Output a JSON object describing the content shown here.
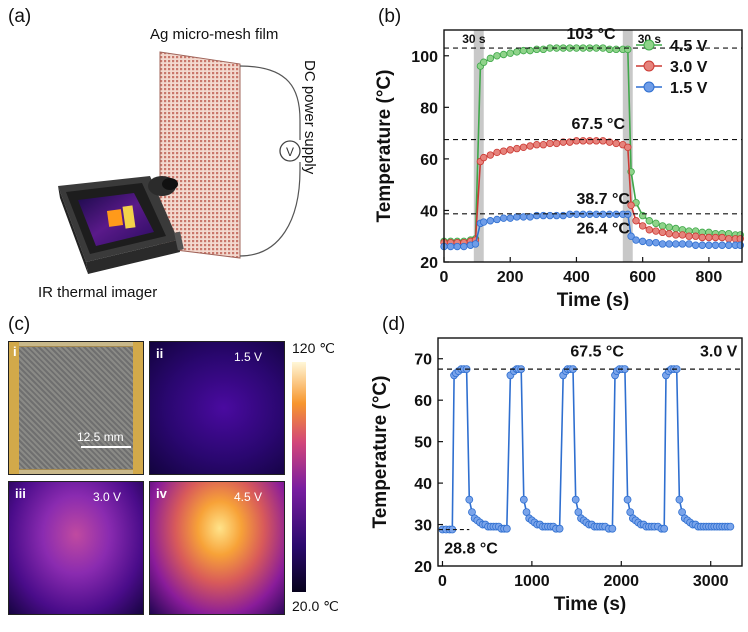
{
  "panel_labels": {
    "a": "(a)",
    "b": "(b)",
    "c": "(c)",
    "d": "(d)"
  },
  "panel_a": {
    "film_label": "Ag micro-mesh film",
    "supply_label": "DC power supply",
    "meter_symbol": "V",
    "camera_label": "IR thermal imager"
  },
  "panel_c": {
    "photo_tag": "i",
    "scale_text": "12.5 mm",
    "images": [
      {
        "tag": "ii",
        "voltage": "1.5 V"
      },
      {
        "tag": "iii",
        "voltage": "3.0 V"
      },
      {
        "tag": "iv",
        "voltage": "4.5 V"
      }
    ],
    "colorbar_max": "120 ℃",
    "colorbar_min": "20.0 ℃"
  },
  "chart_data": [
    {
      "id": "b",
      "type": "line",
      "xlabel": "Time (s)",
      "ylabel": "Temperature (°C)",
      "xlim": [
        0,
        900
      ],
      "ylim": [
        20,
        110
      ],
      "xticks": [
        0,
        200,
        400,
        600,
        800
      ],
      "yticks": [
        20,
        40,
        60,
        80,
        100
      ],
      "legend": "top-right",
      "series": [
        {
          "name": "4.5 V",
          "color": "#3fa84a",
          "fill": "#8fd38a",
          "x": [
            0,
            20,
            40,
            60,
            80,
            95,
            110,
            120,
            140,
            160,
            180,
            200,
            220,
            240,
            260,
            280,
            300,
            320,
            340,
            360,
            380,
            400,
            420,
            440,
            460,
            480,
            500,
            520,
            540,
            555,
            565,
            580,
            600,
            620,
            640,
            660,
            680,
            700,
            720,
            740,
            760,
            780,
            800,
            820,
            840,
            860,
            880,
            895
          ],
          "y": [
            28,
            28,
            28,
            28,
            28.5,
            29,
            96,
            97.5,
            99,
            100,
            100.5,
            101,
            101.5,
            102,
            102,
            102.5,
            102.5,
            103,
            103,
            103,
            103,
            103,
            103,
            103,
            103,
            103,
            102.5,
            102.5,
            102.5,
            102.5,
            55,
            43,
            38,
            36,
            35,
            34,
            33.5,
            33,
            32.5,
            32,
            32,
            31.5,
            31.5,
            31,
            31,
            31,
            30.5,
            30.5
          ]
        },
        {
          "name": "3.0 V",
          "color": "#cc3a34",
          "fill": "#e6837c",
          "x": [
            0,
            20,
            40,
            60,
            80,
            95,
            110,
            120,
            140,
            160,
            180,
            200,
            220,
            240,
            260,
            280,
            300,
            320,
            340,
            360,
            380,
            400,
            420,
            440,
            460,
            480,
            500,
            520,
            540,
            555,
            565,
            580,
            600,
            620,
            640,
            660,
            680,
            700,
            720,
            740,
            760,
            780,
            800,
            820,
            840,
            860,
            880,
            895
          ],
          "y": [
            27.5,
            27.5,
            27.5,
            27.5,
            28,
            28.5,
            59,
            60.5,
            61.5,
            62.5,
            63,
            63.5,
            64,
            64.5,
            65,
            65.5,
            65.5,
            66,
            66,
            66.5,
            66.5,
            67,
            67,
            67,
            67,
            67,
            66.5,
            66,
            65.5,
            64.5,
            42,
            36,
            34,
            32.5,
            32,
            31.5,
            31,
            30.5,
            30.5,
            30,
            30,
            29.5,
            29.5,
            29.5,
            29.5,
            29,
            29,
            29
          ]
        },
        {
          "name": "1.5 V",
          "color": "#2f6fd0",
          "fill": "#6f9de8",
          "x": [
            0,
            20,
            40,
            60,
            80,
            95,
            110,
            120,
            140,
            160,
            180,
            200,
            220,
            240,
            260,
            280,
            300,
            320,
            340,
            360,
            380,
            400,
            420,
            440,
            460,
            480,
            500,
            520,
            540,
            555,
            565,
            580,
            600,
            620,
            640,
            660,
            680,
            700,
            720,
            740,
            760,
            780,
            800,
            820,
            840,
            860,
            880,
            895
          ],
          "y": [
            26,
            26,
            26,
            26,
            26.5,
            27,
            35,
            35.5,
            36,
            36.5,
            37,
            37,
            37.5,
            37.5,
            37.5,
            38,
            38,
            38,
            38,
            38,
            38.5,
            38.5,
            38.5,
            38.5,
            38.5,
            38.5,
            38.5,
            38.5,
            38.5,
            38.5,
            30,
            28.5,
            28,
            27.5,
            27.5,
            27,
            27,
            27,
            27,
            27,
            26.5,
            26.5,
            26.5,
            26.5,
            26.5,
            26.5,
            26.5,
            26.5
          ]
        }
      ],
      "reference_lines": [
        103,
        67.5,
        38.7
      ],
      "shaded_intervals": [
        [
          90,
          120
        ],
        [
          540,
          570
        ]
      ],
      "annotations": [
        {
          "text": "103 °C",
          "x": 370,
          "y": 106.5
        },
        {
          "text": "67.5 °C",
          "x": 385,
          "y": 71.5
        },
        {
          "text": "38.7 °C",
          "x": 400,
          "y": 42.5
        },
        {
          "text": "26.4 °C",
          "x": 400,
          "y": 31
        },
        {
          "text": "30 s",
          "x": 55,
          "y": 105
        },
        {
          "text": "30 s",
          "x": 585,
          "y": 105
        }
      ]
    },
    {
      "id": "d",
      "type": "line",
      "xlabel": "Time (s)",
      "ylabel": "Temperature (°C)",
      "xlim": [
        -50,
        3350
      ],
      "ylim": [
        20,
        75
      ],
      "xticks": [
        0,
        1000,
        2000,
        3000
      ],
      "yticks": [
        20,
        30,
        40,
        50,
        60,
        70
      ],
      "series": [
        {
          "name": "3.0 V",
          "color": "#2f6fd0",
          "fill": "#7aa4ea",
          "x": [
            0,
            40,
            80,
            110,
            130,
            150,
            180,
            210,
            240,
            270,
            300,
            330,
            360,
            390,
            420,
            450,
            480,
            510,
            540,
            570,
            600,
            630,
            660,
            690,
            720,
            760,
            800,
            830,
            850,
            880,
            910,
            940,
            970,
            1000,
            1030,
            1060,
            1090,
            1120,
            1150,
            1180,
            1210,
            1240,
            1270,
            1310,
            1350,
            1380,
            1400,
            1430,
            1460,
            1490,
            1520,
            1550,
            1580,
            1610,
            1640,
            1670,
            1700,
            1730,
            1760,
            1790,
            1820,
            1860,
            1900,
            1930,
            1950,
            1980,
            2010,
            2040,
            2070,
            2100,
            2130,
            2160,
            2190,
            2220,
            2250,
            2280,
            2310,
            2340,
            2370,
            2410,
            2450,
            2480,
            2500,
            2530,
            2560,
            2590,
            2620,
            2650,
            2680,
            2710,
            2740,
            2770,
            2800,
            2830,
            2860,
            2890,
            2920,
            2950,
            2980,
            3010,
            3040,
            3070,
            3100,
            3130,
            3160,
            3190,
            3220
          ],
          "y": [
            28.8,
            28.8,
            28.8,
            28.8,
            66,
            66.5,
            67,
            67.5,
            67.5,
            67.5,
            36,
            33,
            31.5,
            31,
            30.5,
            30,
            30,
            29.5,
            29.5,
            29.5,
            29.5,
            29.5,
            29,
            29,
            29,
            66,
            67,
            67.5,
            67.5,
            67.5,
            36,
            33,
            31.5,
            31,
            30.5,
            30,
            30,
            29.5,
            29.5,
            29.5,
            29.5,
            29.5,
            29,
            29,
            66,
            67,
            67.5,
            67.5,
            67.5,
            36,
            33,
            31.5,
            31,
            30.5,
            30,
            30,
            29.5,
            29.5,
            29.5,
            29.5,
            29.5,
            29,
            29,
            66,
            67,
            67.5,
            67.5,
            67.5,
            36,
            33,
            31.5,
            31,
            30.5,
            30,
            30,
            29.5,
            29.5,
            29.5,
            29.5,
            29.5,
            29,
            29,
            66,
            67,
            67.5,
            67.5,
            67.5,
            36,
            33,
            31.5,
            31,
            30.5,
            30,
            30,
            29.5,
            29.5,
            29.5,
            29.5,
            29.5,
            29.5,
            29.5,
            29.5,
            29.5,
            29.5,
            29.5,
            29.5,
            29.5
          ]
        }
      ],
      "reference_lines": [
        67.5
      ],
      "annotations": [
        {
          "text": "67.5 °C",
          "x": 1430,
          "y": 70.5
        },
        {
          "text": "3.0 V",
          "x": 2880,
          "y": 70.5
        },
        {
          "text": "28.8 °C",
          "x": 20,
          "y": 23
        }
      ]
    }
  ]
}
